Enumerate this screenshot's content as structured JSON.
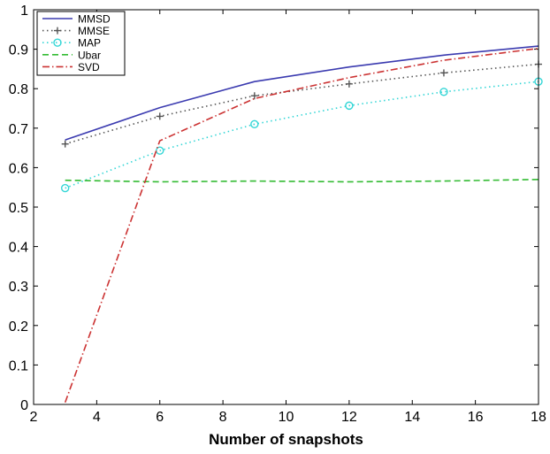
{
  "chart_data": {
    "type": "line",
    "title": "",
    "xlabel": "Number of snapshots",
    "ylabel": "",
    "xlim": [
      2,
      18
    ],
    "ylim": [
      0,
      1
    ],
    "xticks": [
      2,
      4,
      6,
      8,
      10,
      12,
      14,
      16,
      18
    ],
    "yticks": [
      0,
      0.1,
      0.2,
      0.3,
      0.4,
      0.5,
      0.6,
      0.7,
      0.8,
      0.9,
      1
    ],
    "grid": false,
    "legend_position": "top-left",
    "series": [
      {
        "name": "MMSD",
        "color": "#3b3bb0",
        "style": "solid",
        "marker": "none",
        "x": [
          3,
          6,
          9,
          12,
          15,
          18
        ],
        "y": [
          0.67,
          0.752,
          0.818,
          0.855,
          0.885,
          0.908
        ]
      },
      {
        "name": "MMSE",
        "color": "#555555",
        "style": "dotted",
        "marker": "plus",
        "x": [
          3,
          6,
          9,
          12,
          15,
          18
        ],
        "y": [
          0.66,
          0.73,
          0.782,
          0.812,
          0.84,
          0.862
        ]
      },
      {
        "name": "MAP",
        "color": "#33d6d6",
        "style": "dotted",
        "marker": "circle",
        "x": [
          3,
          6,
          9,
          12,
          15,
          18
        ],
        "y": [
          0.548,
          0.643,
          0.71,
          0.757,
          0.792,
          0.818
        ]
      },
      {
        "name": "Ubar",
        "color": "#33bb33",
        "style": "dashed",
        "marker": "none",
        "x": [
          3,
          6,
          9,
          12,
          15,
          18
        ],
        "y": [
          0.568,
          0.564,
          0.566,
          0.564,
          0.566,
          0.57
        ]
      },
      {
        "name": "SVD",
        "color": "#cc3333",
        "style": "dashdot",
        "marker": "none",
        "x": [
          3,
          6,
          9,
          12,
          15,
          18
        ],
        "y": [
          0.005,
          0.668,
          0.775,
          0.828,
          0.872,
          0.902
        ]
      }
    ]
  }
}
